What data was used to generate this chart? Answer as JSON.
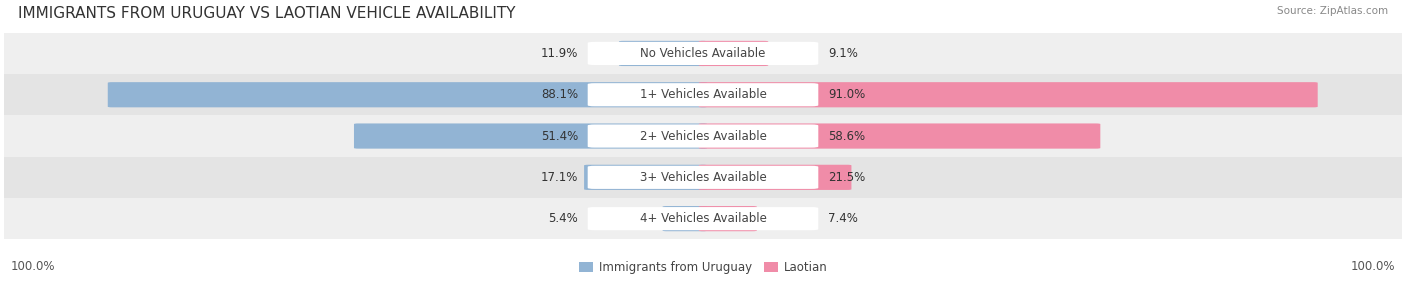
{
  "title": "IMMIGRANTS FROM URUGUAY VS LAOTIAN VEHICLE AVAILABILITY",
  "source": "Source: ZipAtlas.com",
  "categories": [
    "No Vehicles Available",
    "1+ Vehicles Available",
    "2+ Vehicles Available",
    "3+ Vehicles Available",
    "4+ Vehicles Available"
  ],
  "uruguay_values": [
    11.9,
    88.1,
    51.4,
    17.1,
    5.4
  ],
  "laotian_values": [
    9.1,
    91.0,
    58.6,
    21.5,
    7.4
  ],
  "uruguay_color": "#92b4d4",
  "laotian_color": "#f08ca8",
  "row_bg_colors": [
    "#efefef",
    "#e4e4e4"
  ],
  "title_fontsize": 11,
  "label_fontsize": 8.5,
  "value_fontsize": 8.5,
  "legend_fontsize": 8.5,
  "max_value": 100.0,
  "figure_bg": "#ffffff"
}
